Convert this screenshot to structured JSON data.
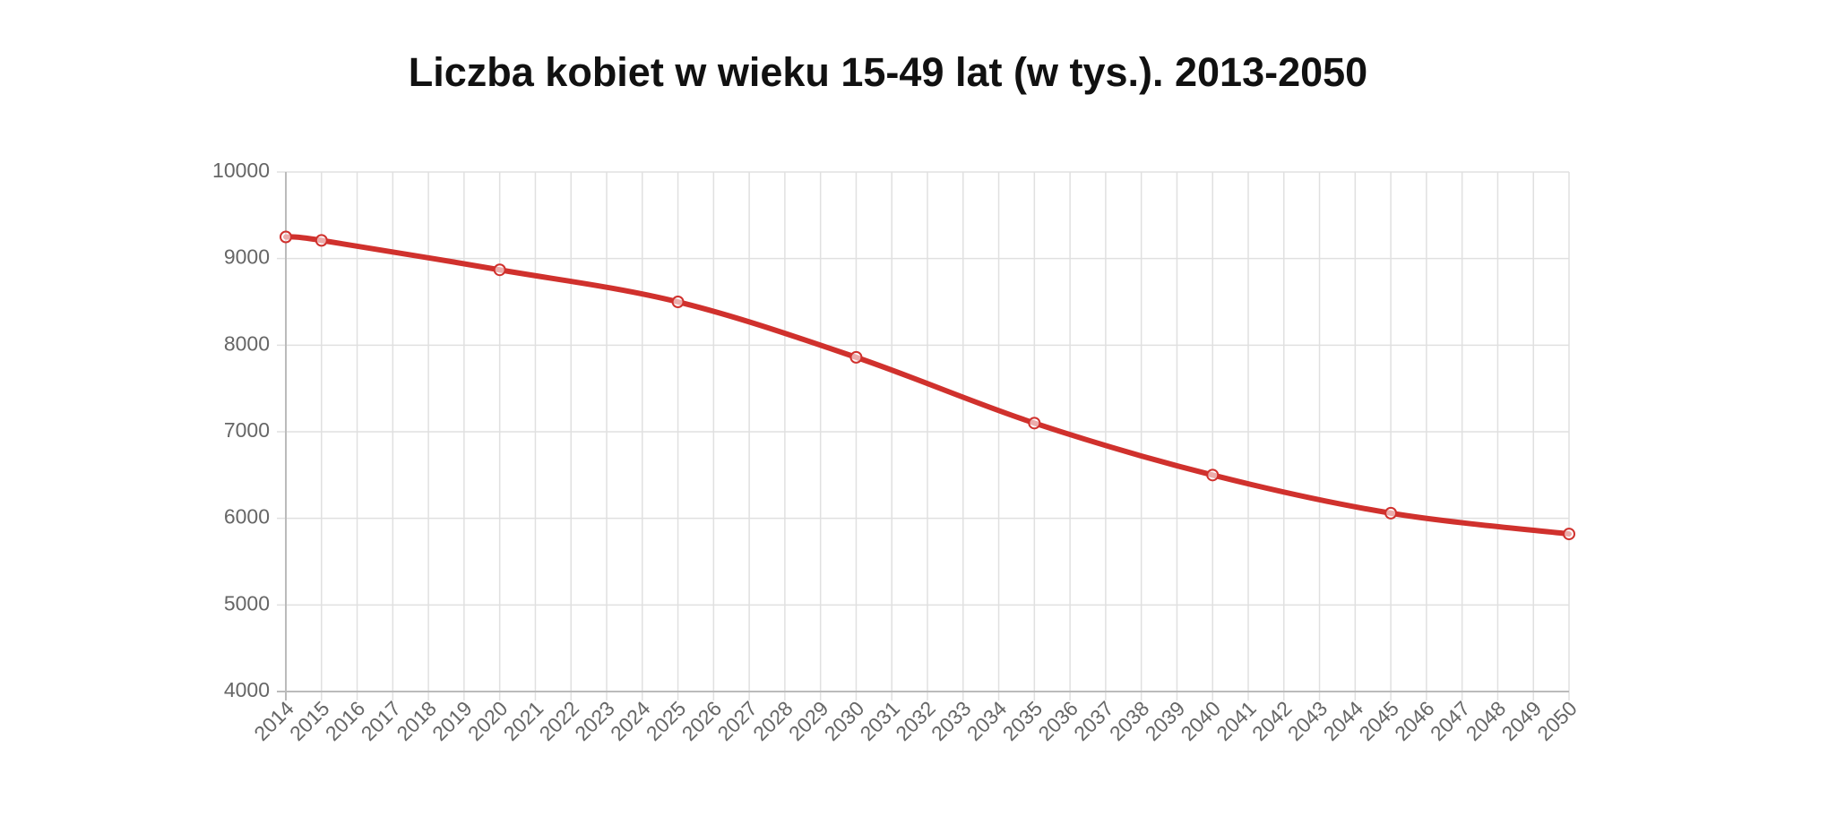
{
  "chart_data": {
    "type": "line",
    "title": "Liczba kobiet w wieku 15-49 lat (w tys.). 2013-2050",
    "x": [
      2014,
      2015,
      2020,
      2025,
      2030,
      2035,
      2040,
      2045,
      2050
    ],
    "series": [
      {
        "color": "#d0312d",
        "values": [
          9250,
          9210,
          8870,
          8500,
          7860,
          7100,
          6500,
          6060,
          5820
        ]
      }
    ],
    "xlim": [
      2014,
      2050
    ],
    "xticks": [
      2014,
      2015,
      2016,
      2017,
      2018,
      2019,
      2020,
      2021,
      2022,
      2023,
      2024,
      2025,
      2026,
      2027,
      2028,
      2029,
      2030,
      2031,
      2032,
      2033,
      2034,
      2035,
      2036,
      2037,
      2038,
      2039,
      2040,
      2041,
      2042,
      2043,
      2044,
      2045,
      2046,
      2047,
      2048,
      2049,
      2050
    ],
    "ylim": [
      4000,
      10000
    ],
    "yticks": [
      4000,
      5000,
      6000,
      7000,
      8000,
      9000,
      10000
    ],
    "grid": true
  }
}
